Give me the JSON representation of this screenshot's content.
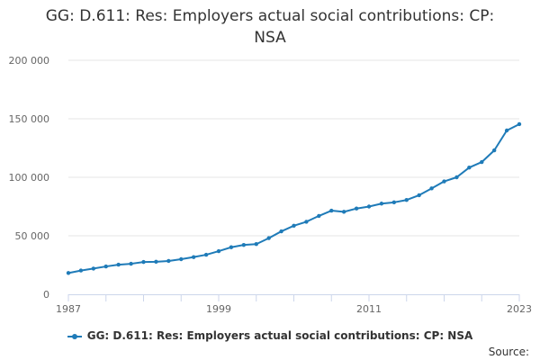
{
  "chart_data": {
    "type": "line",
    "title_lines": [
      "GG: D.611: Res: Employers actual social contributions: CP:",
      "NSA"
    ],
    "x": [
      1987,
      1988,
      1989,
      1990,
      1991,
      1992,
      1993,
      1994,
      1995,
      1996,
      1997,
      1998,
      1999,
      2000,
      2001,
      2002,
      2003,
      2004,
      2005,
      2006,
      2007,
      2008,
      2009,
      2010,
      2011,
      2012,
      2013,
      2014,
      2015,
      2016,
      2017,
      2018,
      2019,
      2020,
      2021,
      2022,
      2023
    ],
    "series": [
      {
        "name": "GG: D.611: Res: Employers actual social contributions: CP: NSA",
        "color": "#1f7bb8",
        "values": [
          18200,
          20300,
          22000,
          23800,
          25300,
          26100,
          27600,
          27800,
          28500,
          30000,
          31800,
          33800,
          36900,
          40200,
          42200,
          42900,
          48000,
          53800,
          58600,
          62000,
          67000,
          71500,
          70500,
          73300,
          75000,
          77500,
          78600,
          80600,
          84700,
          90500,
          96500,
          100000,
          108300,
          113000,
          123000,
          140000,
          145400
        ]
      }
    ],
    "x_ticks": [
      "1987",
      "1999",
      "2011",
      "2023"
    ],
    "y_ticks": [
      "0",
      "50 000",
      "100 000",
      "150 000",
      "200 000"
    ],
    "ylim": [
      0,
      200000
    ],
    "xlim": [
      1987,
      2023
    ],
    "grid": true,
    "legend_position": "bottom"
  },
  "credits": "Source:"
}
